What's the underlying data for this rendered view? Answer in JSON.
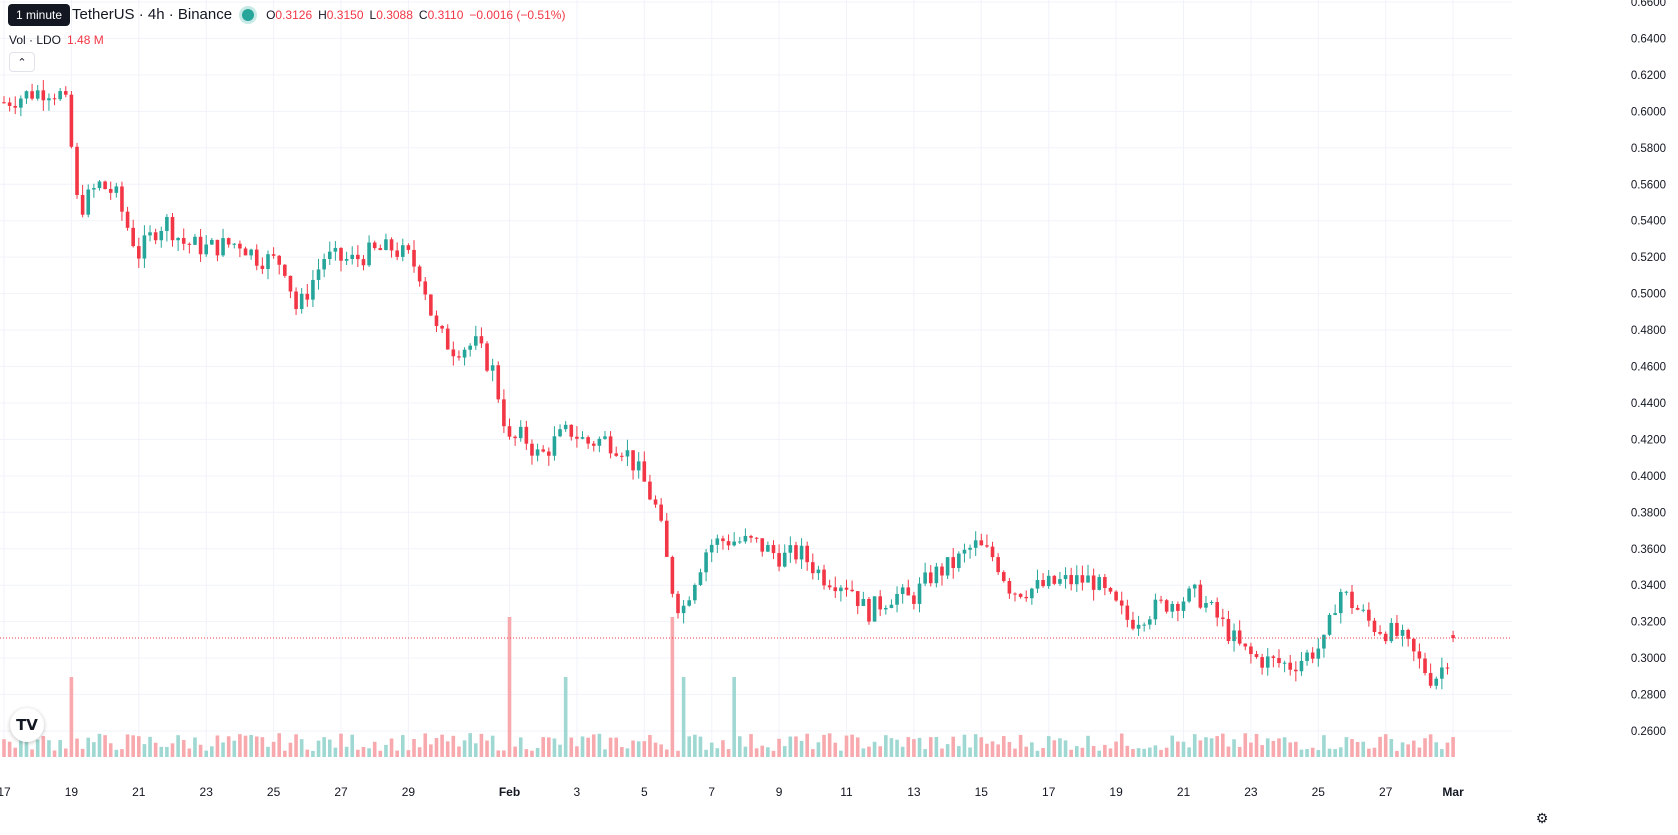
{
  "legend": {
    "tooltip": "1 minute",
    "symbol": "TetherUS · 4h · Binance",
    "open_label": "O",
    "open": "0.3126",
    "high_label": "H",
    "high": "0.3150",
    "low_label": "L",
    "low": "0.3088",
    "close_label": "C",
    "close": "0.3110",
    "change": "−0.0016 (−0.51%)"
  },
  "volume": {
    "label": "Vol · LDO",
    "value": "1.48 M",
    "axis_badge": "1.48M"
  },
  "icons": {
    "collapse": "chevron-up-icon",
    "logo": "tradingview-logo",
    "settings": "gear-icon"
  },
  "colors": {
    "up": "#26a69a",
    "down": "#f23645",
    "up_volume": "#9fd8d2",
    "down_volume": "#f7a9ae"
  },
  "chart_data": {
    "type": "candlestick",
    "pair": "LDO/USDT",
    "interval": "4h",
    "exchange": "Binance",
    "ylim": [
      0.26,
      0.66
    ],
    "y_ticks": [
      "0.6600",
      "0.6400",
      "0.6200",
      "0.6000",
      "0.5800",
      "0.5600",
      "0.5400",
      "0.5200",
      "0.5000",
      "0.4800",
      "0.4600",
      "0.4400",
      "0.4200",
      "0.4000",
      "0.3800",
      "0.3600",
      "0.3400",
      "0.3200",
      "0.3000",
      "0.2800",
      "0.2600"
    ],
    "x_ticks": [
      "17",
      "19",
      "21",
      "23",
      "25",
      "27",
      "29",
      "Feb",
      "3",
      "5",
      "7",
      "9",
      "11",
      "13",
      "15",
      "17",
      "19",
      "21",
      "23",
      "25",
      "27",
      "Mar"
    ],
    "last_price": "0.3110",
    "grid": true,
    "close_path": [
      [
        "Jan 17",
        0.605
      ],
      [
        "Jan 17.8",
        0.61
      ],
      [
        "Jan 18.3",
        0.612
      ],
      [
        "Jan 18.8",
        0.608
      ],
      [
        "Jan 19",
        0.58
      ],
      [
        "Jan 19.2",
        0.545
      ],
      [
        "Jan 19.8",
        0.56
      ],
      [
        "Jan 20.3",
        0.555
      ],
      [
        "Jan 20.7",
        0.535
      ],
      [
        "Jan 21",
        0.522
      ],
      [
        "Jan 21.5",
        0.535
      ],
      [
        "Jan 21.8",
        0.54
      ],
      [
        "Jan 22.3",
        0.528
      ],
      [
        "Jan 23",
        0.525
      ],
      [
        "Jan 24",
        0.528
      ],
      [
        "Jan 24.5",
        0.52
      ],
      [
        "Jan 25.3",
        0.517
      ],
      [
        "Jan 25.7",
        0.49
      ],
      [
        "Jan 26.1",
        0.505
      ],
      [
        "Jan 26.5",
        0.52
      ],
      [
        "Jan 27.3",
        0.518
      ],
      [
        "Jan 27.8",
        0.522
      ],
      [
        "Jan 28.5",
        0.525
      ],
      [
        "Jan 29",
        0.52
      ],
      [
        "Jan 29.4",
        0.51
      ],
      [
        "Jan 29.8",
        0.48
      ],
      [
        "Jan 30.3",
        0.47
      ],
      [
        "Jan 31",
        0.472
      ],
      [
        "Jan 31.5",
        0.458
      ],
      [
        "Feb 1",
        0.418
      ],
      [
        "Feb 1.4",
        0.422
      ],
      [
        "Feb 1.9",
        0.41
      ],
      [
        "Feb 2.4",
        0.42
      ],
      [
        "Feb 2.8",
        0.425
      ],
      [
        "Feb 3.3",
        0.418
      ],
      [
        "Feb 3.8",
        0.42
      ],
      [
        "Feb 4.4",
        0.415
      ],
      [
        "Feb 4.9",
        0.4
      ],
      [
        "Feb 5.4",
        0.38
      ],
      [
        "Feb 5.8",
        0.34
      ],
      [
        "Feb 6.1",
        0.325
      ],
      [
        "Feb 6.4",
        0.34
      ],
      [
        "Feb 6.9",
        0.362
      ],
      [
        "Feb 7.4",
        0.365
      ],
      [
        "Feb 8.3",
        0.363
      ],
      [
        "Feb 9.1",
        0.355
      ],
      [
        "Feb 9.6",
        0.358
      ],
      [
        "Feb 10.3",
        0.345
      ],
      [
        "Feb 11.1",
        0.34
      ],
      [
        "Feb 11.6",
        0.325
      ],
      [
        "Feb 12.4",
        0.335
      ],
      [
        "Feb 12.9",
        0.332
      ],
      [
        "Feb 13.5",
        0.345
      ],
      [
        "Feb 14.2",
        0.352
      ],
      [
        "Feb 14.8",
        0.362
      ],
      [
        "Feb 15.4",
        0.355
      ],
      [
        "Feb 15.9",
        0.337
      ],
      [
        "Feb 16.5",
        0.338
      ],
      [
        "Feb 17.4",
        0.342
      ],
      [
        "Feb 18.3",
        0.343
      ],
      [
        "Feb 18.9",
        0.33
      ],
      [
        "Feb 19.4",
        0.32
      ],
      [
        "Feb 19.9",
        0.325
      ],
      [
        "Feb 20.5",
        0.33
      ],
      [
        "Feb 21.4",
        0.335
      ],
      [
        "Feb 22.1",
        0.32
      ],
      [
        "Feb 22.7",
        0.305
      ],
      [
        "Feb 23.1",
        0.3
      ],
      [
        "Feb 23.6",
        0.298
      ],
      [
        "Feb 24.2",
        0.296
      ],
      [
        "Feb 24.7",
        0.302
      ],
      [
        "Feb 25.2",
        0.308
      ],
      [
        "Feb 25.6",
        0.338
      ],
      [
        "Feb 26",
        0.33
      ],
      [
        "Feb 26.6",
        0.318
      ],
      [
        "Feb 27.4",
        0.312
      ],
      [
        "Feb 27.9",
        0.3
      ],
      [
        "Feb 28.4",
        0.288
      ],
      [
        "Feb 28.8",
        0.298
      ],
      [
        "Mar 1",
        0.311
      ]
    ],
    "volume_spikes": [
      [
        "Jan 19",
        "high"
      ],
      [
        "Feb 1",
        "very high"
      ],
      [
        "Feb 2.7",
        "high"
      ],
      [
        "Feb 5.8",
        "very high"
      ],
      [
        "Feb 6.1",
        "high"
      ],
      [
        "Feb 7.6",
        "high"
      ]
    ],
    "volume_last": "1.48M"
  }
}
